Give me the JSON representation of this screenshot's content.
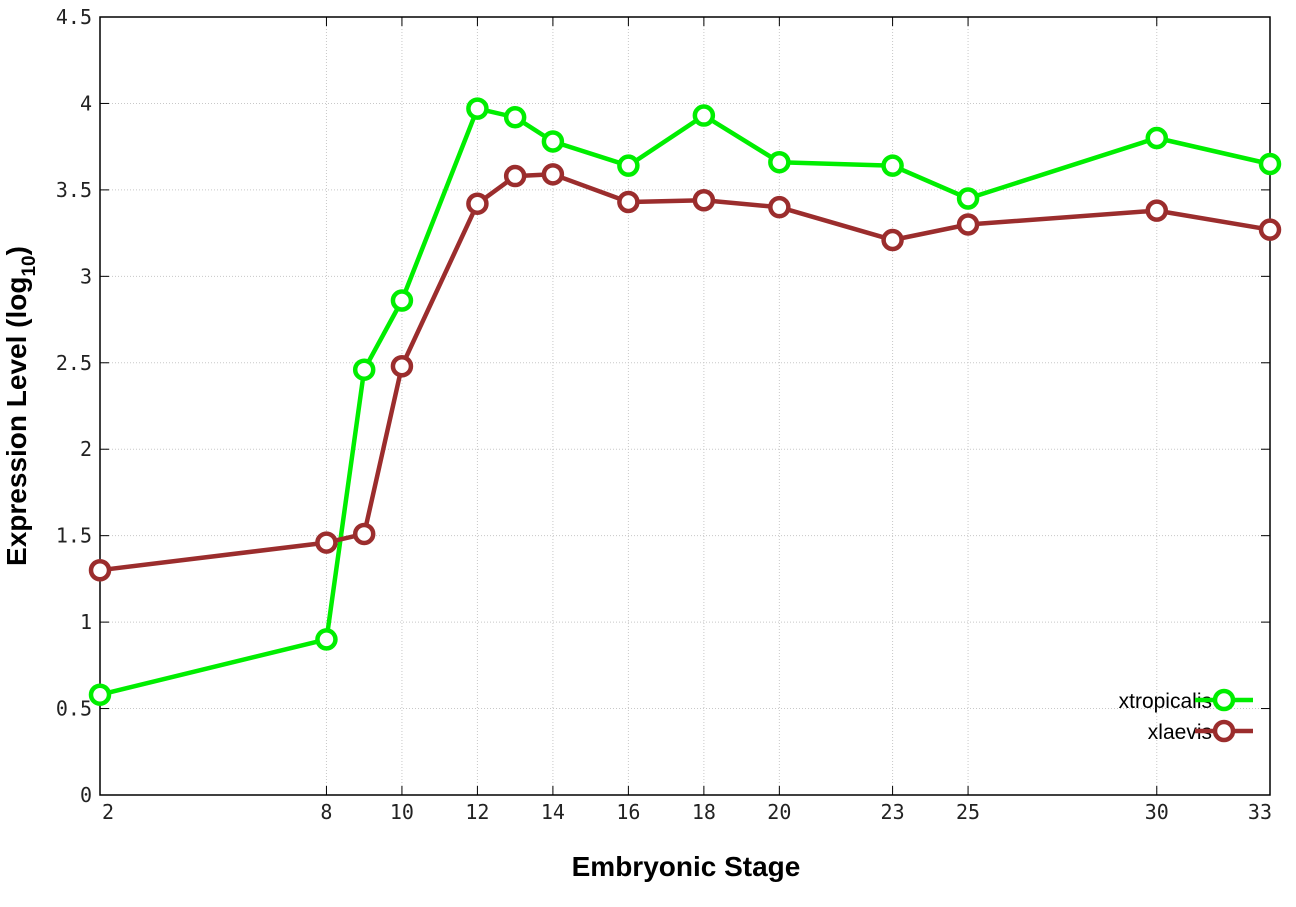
{
  "chart_data": {
    "type": "line",
    "title": "",
    "xlabel": "Embryonic Stage",
    "ylabel_main": "Expression Level (log",
    "ylabel_sub": "10",
    "ylabel_close": ")",
    "x_ticks": [
      2,
      8,
      10,
      12,
      14,
      16,
      18,
      20,
      23,
      25,
      30,
      33
    ],
    "y_ticks": [
      "0",
      "0.5",
      "1",
      "1.5",
      "2",
      "2.5",
      "3",
      "3.5",
      "4",
      "4.5"
    ],
    "xlim": [
      2,
      33
    ],
    "ylim": [
      0,
      4.5
    ],
    "grid": true,
    "legend_position": "bottom-right",
    "x": [
      2,
      8,
      9,
      10,
      12,
      13,
      14,
      16,
      18,
      20,
      23,
      25,
      30,
      33
    ],
    "series": [
      {
        "name": "xtropicalis",
        "color": "#00ee00",
        "values": [
          0.58,
          0.9,
          2.46,
          2.86,
          3.97,
          3.92,
          3.78,
          3.64,
          3.93,
          3.66,
          3.64,
          3.45,
          3.8,
          3.65
        ]
      },
      {
        "name": "xlaevis",
        "color": "#9b2d2d",
        "values": [
          1.3,
          1.46,
          1.51,
          2.48,
          3.42,
          3.58,
          3.59,
          3.43,
          3.44,
          3.4,
          3.21,
          3.3,
          3.38,
          3.27
        ]
      }
    ]
  }
}
